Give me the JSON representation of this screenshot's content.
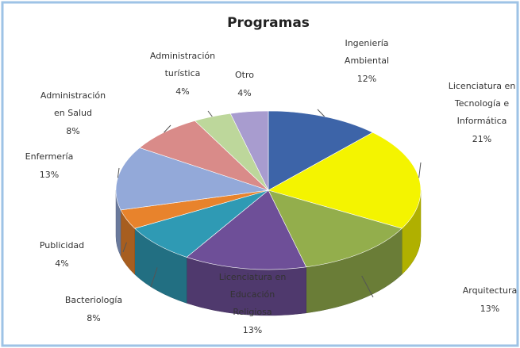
{
  "chart_data": {
    "type": "pie",
    "title": "Programas",
    "categories": [
      "Ingeniería Ambiental",
      "Licenciatura en Tecnología e Informática",
      "Arquitectura",
      "Licenciatura en Educación Religiosa",
      "Bacteriología",
      "Publicidad",
      "Enfermería",
      "Administración en Salud",
      "Administración turística",
      "Otro"
    ],
    "values": [
      12,
      21,
      13,
      13,
      8,
      4,
      13,
      8,
      4,
      4
    ],
    "value_labels": [
      "12%",
      "21%",
      "13%",
      "13%",
      "8%",
      "4%",
      "13%",
      "8%",
      "4%",
      "4%"
    ],
    "colors": [
      "#3d64a8",
      "#f4f400",
      "#93ae4c",
      "#6e4f98",
      "#2f9ab4",
      "#e8832c",
      "#93a9d9",
      "#d98b89",
      "#bdd79b",
      "#a89ccf"
    ]
  }
}
